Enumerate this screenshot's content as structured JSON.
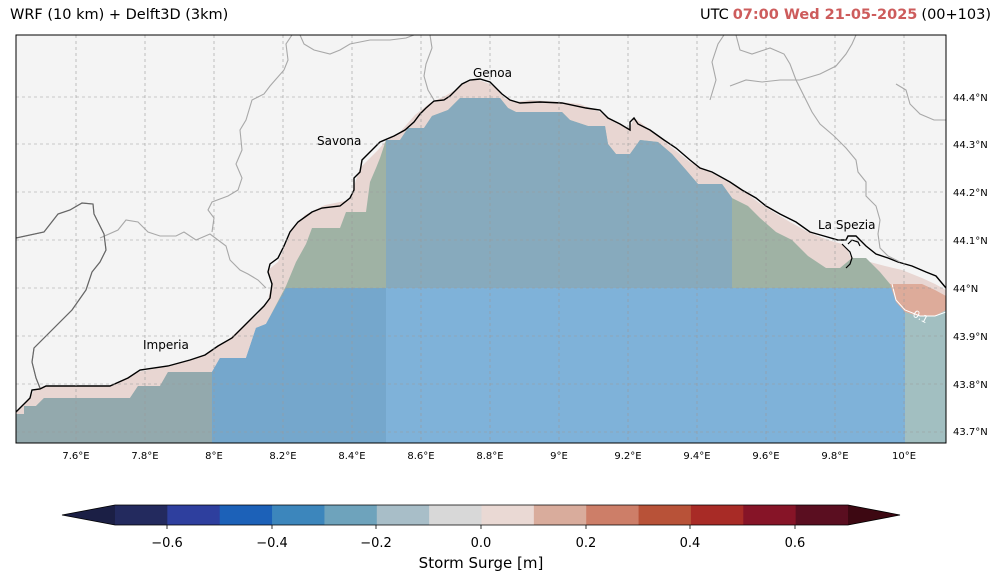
{
  "header": {
    "left_title": "WRF (10 km) + Delft3D (3km)",
    "utc_label": "UTC",
    "datetime": "07:00 Wed 21-05-2025",
    "run": "(00+103)"
  },
  "map": {
    "lon_ticks": [
      "7.6°E",
      "7.8°E",
      "8°E",
      "8.2°E",
      "8.4°E",
      "8.6°E",
      "8.8°E",
      "9°E",
      "9.2°E",
      "9.4°E",
      "9.6°E",
      "9.8°E",
      "10°E"
    ],
    "lat_ticks": [
      "44.4°N",
      "44.3°N",
      "44.2°N",
      "44.1°N",
      "44°N",
      "43.9°N",
      "43.8°N",
      "43.7°N"
    ],
    "cities": [
      {
        "name": "Genoa"
      },
      {
        "name": "Savona"
      },
      {
        "name": "La Spezia"
      },
      {
        "name": "Imperia"
      }
    ],
    "contour_label": "0.1",
    "colors": {
      "land": "#f4f4f4",
      "coast_band": "#e8d6d2",
      "sea_light_blue": "#7fb2d9",
      "sea_mid_blue": "#7aa9c8",
      "sea_green": "#9fb2a4",
      "sea_west": "#93a9ad",
      "positive_patch": "#ddab9a"
    }
  },
  "colorbar": {
    "label": "Storm Surge [m]",
    "ticks": [
      "−0.6",
      "−0.4",
      "−0.2",
      "0.0",
      "0.2",
      "0.4",
      "0.6"
    ],
    "colors": [
      "#232a5e",
      "#2e3f9e",
      "#1c61b8",
      "#3c86bc",
      "#6ea3bc",
      "#a8bec8",
      "#d8d8d8",
      "#ead9d4",
      "#d9ac9c",
      "#cd7e68",
      "#b85238",
      "#a82b26",
      "#861427",
      "#5a0e20"
    ],
    "under_color": "#1b1f45",
    "over_color": "#3d0812"
  }
}
